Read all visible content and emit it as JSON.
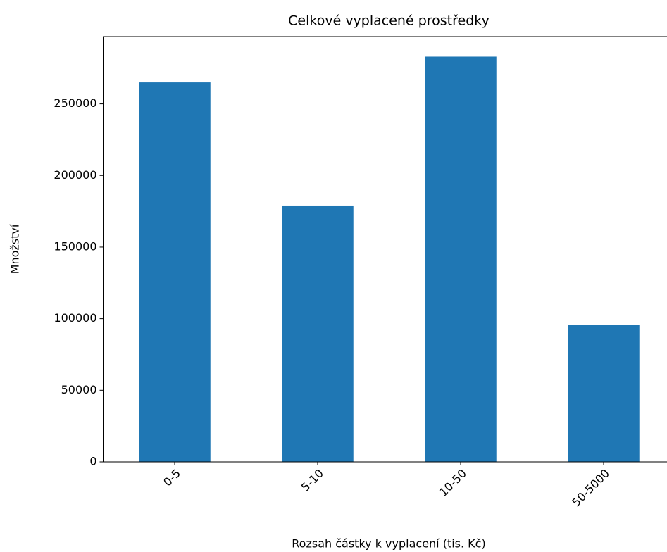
{
  "chart_data": {
    "type": "bar",
    "title": "Celkové vyplacené prostředky",
    "xlabel": "Rozsah částky k vyplacení (tis. Kč)",
    "ylabel": "Množství",
    "categories": [
      "0-5",
      "5-10",
      "10-50",
      "50-5000"
    ],
    "values": [
      265000,
      179000,
      283000,
      95600
    ],
    "color": "#1f77b4",
    "ylim": [
      0,
      297000
    ],
    "yticks": [
      0,
      50000,
      100000,
      150000,
      200000,
      250000
    ]
  }
}
